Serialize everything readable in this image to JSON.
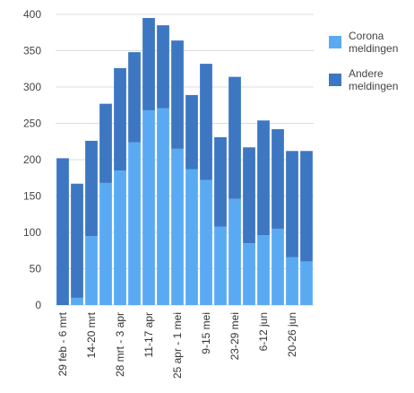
{
  "chart_data": {
    "type": "bar",
    "stacked": true,
    "ylim": [
      0,
      400
    ],
    "yticks": [
      0,
      50,
      100,
      150,
      200,
      250,
      300,
      350,
      400
    ],
    "grid": true,
    "legend_position": "right",
    "categories": [
      "29 feb - 6 mrt",
      "",
      "14-20 mrt",
      "",
      "28 mrt - 3 apr",
      "",
      "11-17 apr",
      "",
      "25 apr - 1 mei",
      "",
      "9-15 mei",
      "",
      "23-29 mei",
      "",
      "6-12 jun",
      "",
      "20-26 jun",
      ""
    ],
    "series": [
      {
        "name": "Corona meldingen",
        "legend_lines": [
          "Corona",
          "meldingen"
        ],
        "color": "#5aaaf3",
        "values": [
          0,
          10,
          95,
          168,
          185,
          224,
          268,
          271,
          215,
          187,
          172,
          108,
          146,
          85,
          96,
          105,
          66,
          60
        ]
      },
      {
        "name": "Andere meldingen",
        "legend_lines": [
          "Andere",
          "meldingen"
        ],
        "color": "#3d77c2",
        "values": [
          202,
          157,
          131,
          109,
          141,
          124,
          127,
          114,
          149,
          102,
          160,
          123,
          168,
          132,
          158,
          137,
          146,
          152
        ]
      }
    ]
  }
}
